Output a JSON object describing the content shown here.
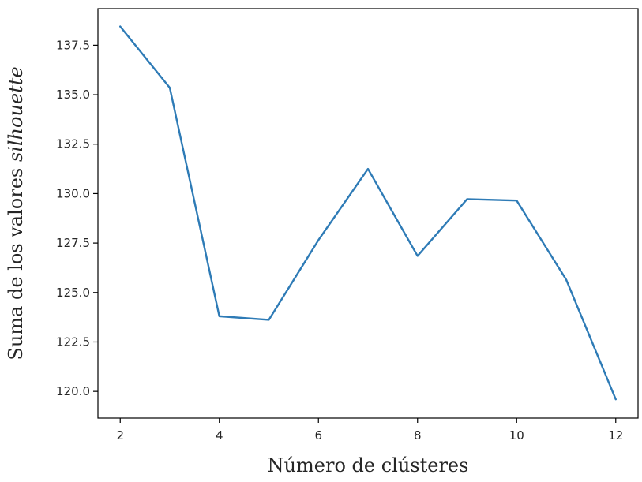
{
  "chart_data": {
    "type": "line",
    "title": "",
    "xlabel": "Número de  clústeres",
    "ylabel": {
      "prefix": "Suma de los valores ",
      "emphasis": "silhouette"
    },
    "xlim": [
      1.55,
      12.45
    ],
    "ylim": [
      118.65,
      139.35
    ],
    "x_ticks": [
      2,
      4,
      6,
      8,
      10,
      12
    ],
    "x_tick_labels": [
      "2",
      "4",
      "6",
      "8",
      "10",
      "12"
    ],
    "y_ticks": [
      120.0,
      122.5,
      125.0,
      127.5,
      130.0,
      132.5,
      135.0,
      137.5
    ],
    "y_tick_labels": [
      "120.0",
      "122.5",
      "125.0",
      "127.5",
      "130.0",
      "132.5",
      "135.0",
      "137.5"
    ],
    "grid": false,
    "series": [
      {
        "color": "#2e7bb6",
        "x": [
          2,
          3,
          4,
          5,
          6,
          7,
          8,
          9,
          10,
          11,
          12
        ],
        "y": [
          138.45,
          135.35,
          123.8,
          123.62,
          127.65,
          131.25,
          126.85,
          129.72,
          129.65,
          125.65,
          119.6
        ]
      }
    ]
  }
}
